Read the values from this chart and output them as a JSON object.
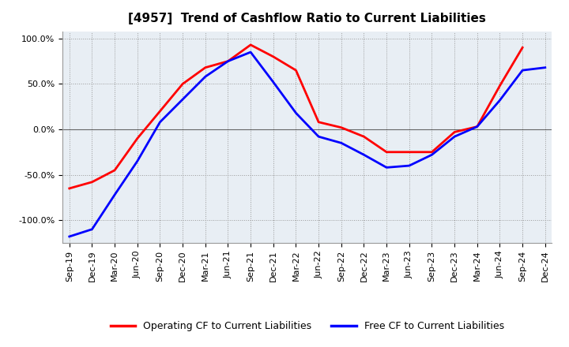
{
  "title": "[4957]  Trend of Cashflow Ratio to Current Liabilities",
  "x_labels": [
    "Sep-19",
    "Dec-19",
    "Mar-20",
    "Jun-20",
    "Sep-20",
    "Dec-20",
    "Mar-21",
    "Jun-21",
    "Sep-21",
    "Dec-21",
    "Mar-22",
    "Jun-22",
    "Sep-22",
    "Dec-22",
    "Mar-23",
    "Jun-23",
    "Sep-23",
    "Dec-23",
    "Mar-24",
    "Jun-24",
    "Sep-24",
    "Dec-24"
  ],
  "operating_cf": [
    -65,
    -58,
    -45,
    -10,
    20,
    50,
    68,
    75,
    93,
    80,
    65,
    8,
    2,
    -8,
    -25,
    -25,
    -25,
    -3,
    3,
    48,
    90,
    null
  ],
  "free_cf": [
    -118,
    -110,
    -72,
    -35,
    8,
    33,
    58,
    75,
    85,
    52,
    18,
    -8,
    -15,
    -28,
    -42,
    -40,
    -28,
    -8,
    3,
    32,
    65,
    68
  ],
  "ylim": [
    -125,
    108
  ],
  "yticks": [
    -100,
    -50,
    0,
    50,
    100
  ],
  "ytick_labels": [
    "-100.0%",
    "-50.0%",
    "0.0%",
    "50.0%",
    "100.0%"
  ],
  "operating_color": "#FF0000",
  "free_color": "#0000FF",
  "background_color": "#FFFFFF",
  "plot_bg_color": "#E8EEF4",
  "grid_color": "#AAAAAA",
  "line_width": 2.0,
  "legend_op": "Operating CF to Current Liabilities",
  "legend_free": "Free CF to Current Liabilities",
  "title_fontsize": 11,
  "tick_fontsize": 8
}
